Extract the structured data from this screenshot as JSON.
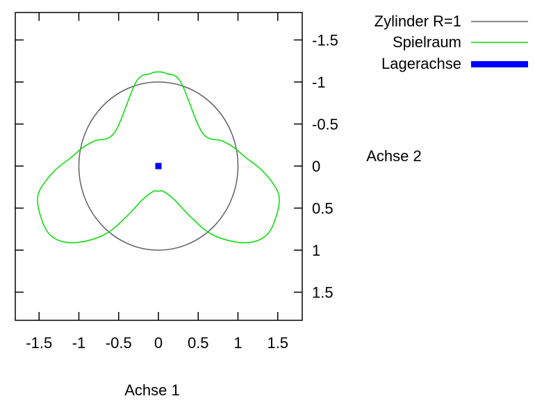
{
  "chart_data": {
    "type": "line",
    "title": "",
    "xlabel": "Achse 1",
    "ylabel": "Achse 2",
    "xlim": [
      -1.8,
      1.8
    ],
    "ylim": [
      -1.8,
      1.8
    ],
    "y_inverted": true,
    "aspect": "equal",
    "grid": false,
    "legend_position": "top-right, outside plot",
    "x_ticks": [
      {
        "v": -1.5,
        "label": "-1.5"
      },
      {
        "v": -1,
        "label": "-1"
      },
      {
        "v": -0.5,
        "label": "-0.5"
      },
      {
        "v": 0,
        "label": "0"
      },
      {
        "v": 0.5,
        "label": "0.5"
      },
      {
        "v": 1,
        "label": "1"
      },
      {
        "v": 1.5,
        "label": "1.5"
      }
    ],
    "y_ticks": [
      {
        "v": -1.5,
        "label": "-1.5"
      },
      {
        "v": -1,
        "label": "-1"
      },
      {
        "v": -0.5,
        "label": "-0.5"
      },
      {
        "v": 0,
        "label": "0"
      },
      {
        "v": 0.5,
        "label": "0.5"
      },
      {
        "v": 1,
        "label": "1"
      },
      {
        "v": 1.5,
        "label": "1.5"
      }
    ],
    "series": [
      {
        "name": "Zylinder R=1",
        "kind": "circle",
        "color": "#606060",
        "center": [
          0,
          0
        ],
        "radius": 1
      },
      {
        "name": "Spielraum",
        "kind": "line",
        "color": "#00dd00",
        "closed": true,
        "x": [
          0,
          0.1,
          0.28,
          0.55,
          0.8,
          0.95,
          1.1,
          1.3,
          1.47,
          1.52,
          1.48,
          1.38,
          1.2,
          0.95,
          0.65,
          0.4,
          0.2,
          0.06,
          0,
          -0.06,
          -0.2,
          -0.4,
          -0.65,
          -0.95,
          -1.2,
          -1.38,
          -1.48,
          -1.52,
          -1.47,
          -1.3,
          -1.1,
          -0.95,
          -0.8,
          -0.55,
          -0.28,
          -0.1,
          0
        ],
        "y": [
          -1.12,
          -1.1,
          -1.0,
          -0.4,
          -0.3,
          -0.22,
          -0.1,
          0.05,
          0.25,
          0.4,
          0.6,
          0.8,
          0.9,
          0.9,
          0.8,
          0.6,
          0.4,
          0.3,
          0.3,
          0.3,
          0.4,
          0.6,
          0.8,
          0.9,
          0.9,
          0.8,
          0.6,
          0.4,
          0.25,
          0.05,
          -0.1,
          -0.22,
          -0.3,
          -0.4,
          -1.0,
          -1.1,
          -1.12
        ]
      },
      {
        "name": "Lagerachse",
        "kind": "point",
        "color": "#0000ff",
        "x": [
          0
        ],
        "y": [
          0
        ]
      }
    ]
  }
}
